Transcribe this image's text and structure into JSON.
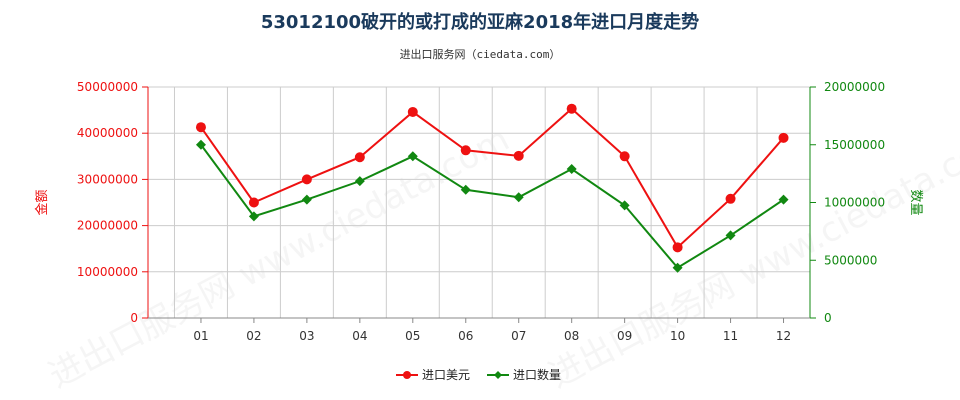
{
  "title": "53012100破开的或打成的亚麻2018年进口月度走势",
  "subtitle": "进出口服务网（ciedata.com）",
  "watermark": "进出口服务网 www.ciedata.com",
  "colors": {
    "amount": "#ee1111",
    "quantity": "#118811",
    "grid": "#cccccc",
    "axis": "#888888"
  },
  "chart_data": {
    "type": "line",
    "categories": [
      "01",
      "02",
      "03",
      "04",
      "05",
      "06",
      "07",
      "08",
      "09",
      "10",
      "11",
      "12"
    ],
    "y_left": {
      "label": "金额",
      "min": 0,
      "max": 50000000,
      "ticks": [
        "0",
        "10000000",
        "20000000",
        "30000000",
        "40000000",
        "50000000"
      ]
    },
    "y_right": {
      "label": "数量",
      "min": 0,
      "max": 20000000,
      "ticks": [
        "0",
        "5000000",
        "10000000",
        "15000000",
        "20000000"
      ]
    },
    "grid": true,
    "legend_position": "bottom",
    "series": [
      {
        "name": "进口美元",
        "axis": "left",
        "color": "#ee1111",
        "marker": "circle",
        "values": [
          41300000,
          25000000,
          30000000,
          34800000,
          44600000,
          36300000,
          35100000,
          45300000,
          35000000,
          15300000,
          25800000,
          39000000
        ]
      },
      {
        "name": "进口数量",
        "axis": "right",
        "color": "#118811",
        "marker": "diamond",
        "values": [
          15000000,
          8800000,
          10250000,
          11850000,
          14000000,
          11100000,
          10450000,
          12900000,
          9750000,
          4350000,
          7150000,
          10250000
        ]
      }
    ]
  }
}
